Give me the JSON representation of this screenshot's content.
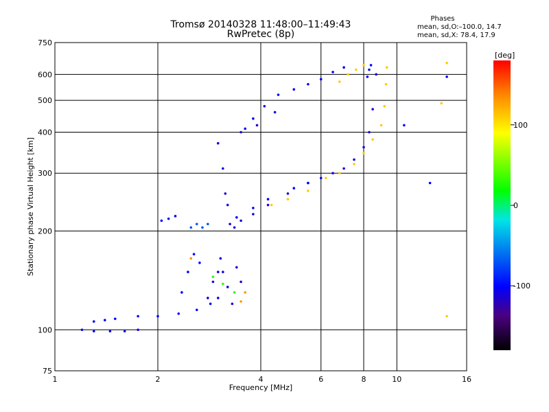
{
  "chart_data": {
    "type": "scatter",
    "title": "Tromsø 20140328 11:48:00–11:49:43",
    "subtitle": "RwPretec (8p)",
    "xlabel": "Frequency [MHz]",
    "ylabel": "Stationary phase Virtual Height [km]",
    "x_scale": "log2",
    "y_scale": "log",
    "xlim": [
      1,
      16
    ],
    "ylim": [
      75,
      750
    ],
    "x_ticks": [
      1,
      2,
      4,
      6,
      8,
      10,
      16
    ],
    "x_tick_labels": [
      "1",
      "2",
      "4",
      "6",
      "8",
      "10",
      "16"
    ],
    "y_ticks": [
      75,
      100,
      200,
      300,
      400,
      500,
      600,
      750
    ],
    "y_tick_labels": [
      "75",
      "100",
      "200",
      "300",
      "400",
      "500",
      "600",
      "750"
    ],
    "grid": true,
    "phases_panel": {
      "title": "Phases",
      "line_o": "mean, sd,O:–100.0, 14.7",
      "line_x": "mean, sd,X:  78.4, 17.9"
    },
    "colorbar": {
      "label": "[deg]",
      "range": [
        -180,
        180
      ],
      "ticks": [
        100,
        0,
        -100
      ],
      "tick_labels": [
        "100",
        "0",
        "-100"
      ]
    },
    "traces": [
      {
        "phase": -100,
        "points": [
          [
            1.2,
            100
          ],
          [
            1.3,
            99
          ],
          [
            1.45,
            99
          ],
          [
            1.6,
            99
          ],
          [
            1.75,
            100
          ]
        ]
      },
      {
        "phase": -100,
        "points": [
          [
            1.3,
            106
          ],
          [
            1.4,
            107
          ],
          [
            1.5,
            108
          ]
        ]
      },
      {
        "phase": -100,
        "points": [
          [
            1.75,
            110
          ],
          [
            2.0,
            110
          ],
          [
            2.3,
            112
          ],
          [
            2.6,
            115
          ],
          [
            2.85,
            120
          ],
          [
            3.0,
            125
          ]
        ]
      },
      {
        "phase": -110,
        "points": [
          [
            2.8,
            125
          ],
          [
            2.9,
            140
          ],
          [
            3.0,
            150
          ],
          [
            3.05,
            165
          ],
          [
            3.1,
            150
          ],
          [
            3.2,
            135
          ],
          [
            3.3,
            120
          ],
          [
            3.4,
            155
          ],
          [
            3.5,
            140
          ]
        ]
      },
      {
        "phase": -100,
        "points": [
          [
            2.35,
            130
          ],
          [
            2.45,
            150
          ],
          [
            2.55,
            170
          ],
          [
            2.65,
            160
          ]
        ]
      },
      {
        "phase": 30,
        "points": [
          [
            2.9,
            145
          ],
          [
            3.1,
            138
          ],
          [
            3.35,
            130
          ]
        ]
      },
      {
        "phase": 130,
        "points": [
          [
            2.5,
            165
          ],
          [
            3.5,
            122
          ],
          [
            3.6,
            130
          ]
        ]
      },
      {
        "phase": -70,
        "points": [
          [
            2.5,
            205
          ],
          [
            2.6,
            210
          ],
          [
            2.7,
            205
          ],
          [
            2.8,
            210
          ]
        ]
      },
      {
        "phase": -100,
        "points": [
          [
            2.05,
            215
          ],
          [
            2.15,
            218
          ],
          [
            2.25,
            222
          ]
        ]
      },
      {
        "phase": -110,
        "points": [
          [
            3.0,
            370
          ],
          [
            3.1,
            310
          ],
          [
            3.15,
            260
          ],
          [
            3.2,
            240
          ],
          [
            3.25,
            210
          ],
          [
            3.35,
            205
          ],
          [
            3.5,
            215
          ],
          [
            3.8,
            225
          ],
          [
            4.2,
            240
          ],
          [
            4.8,
            260
          ],
          [
            5.5,
            280
          ],
          [
            6.0,
            290
          ],
          [
            6.5,
            300
          ],
          [
            7.0,
            310
          ],
          [
            7.5,
            330
          ],
          [
            8.0,
            360
          ],
          [
            8.3,
            400
          ],
          [
            8.5,
            470
          ],
          [
            8.7,
            600
          ]
        ]
      },
      {
        "phase": -100,
        "points": [
          [
            3.4,
            220
          ],
          [
            3.8,
            235
          ],
          [
            4.2,
            250
          ],
          [
            5.0,
            270
          ],
          [
            5.5,
            280
          ]
        ]
      },
      {
        "phase": 110,
        "points": [
          [
            4.3,
            240
          ],
          [
            4.8,
            250
          ],
          [
            5.5,
            265
          ],
          [
            6.2,
            290
          ],
          [
            6.8,
            300
          ],
          [
            7.5,
            320
          ],
          [
            8.0,
            345
          ],
          [
            8.5,
            380
          ],
          [
            9.0,
            420
          ],
          [
            9.2,
            480
          ],
          [
            9.3,
            560
          ],
          [
            9.35,
            630
          ]
        ]
      },
      {
        "phase": -100,
        "points": [
          [
            3.6,
            410
          ],
          [
            3.8,
            440
          ],
          [
            4.1,
            480
          ],
          [
            4.5,
            520
          ],
          [
            5.0,
            540
          ],
          [
            5.5,
            560
          ],
          [
            6.0,
            580
          ],
          [
            6.5,
            610
          ],
          [
            7.0,
            630
          ]
        ]
      },
      {
        "phase": -110,
        "points": [
          [
            3.5,
            400
          ],
          [
            3.9,
            420
          ],
          [
            4.4,
            460
          ]
        ]
      },
      {
        "phase": 110,
        "points": [
          [
            6.8,
            570
          ],
          [
            7.2,
            600
          ],
          [
            7.6,
            620
          ],
          [
            8.0,
            640
          ]
        ]
      },
      {
        "phase": -100,
        "points": [
          [
            8.2,
            590
          ],
          [
            8.3,
            620
          ],
          [
            8.4,
            640
          ]
        ]
      },
      {
        "phase": -100,
        "points": [
          [
            10.5,
            420
          ],
          [
            12.5,
            280
          ],
          [
            14.0,
            590
          ]
        ]
      },
      {
        "phase": 110,
        "points": [
          [
            13.5,
            490
          ],
          [
            14.0,
            650
          ],
          [
            14.0,
            110
          ]
        ]
      }
    ]
  }
}
